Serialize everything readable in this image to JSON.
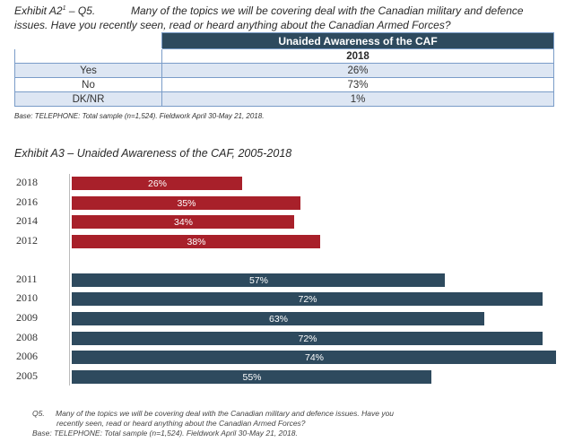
{
  "exhibit_a2": {
    "id": "Exhibit A2",
    "sup": "1",
    "question_id": "– Q5.",
    "question_line1": "Many of the topics we will be covering deal with the Canadian military and defence",
    "question_line2": "issues. Have you recently seen, read or heard anything about the Canadian Armed Forces?"
  },
  "table": {
    "title": "Unaided Awareness of the CAF",
    "year_header": "2018",
    "rows": [
      {
        "label": "Yes",
        "value": "26%"
      },
      {
        "label": "No",
        "value": "73%"
      },
      {
        "label": "DK/NR",
        "value": "1%"
      }
    ],
    "base": "Base: TELEPHONE: Total sample (n=1,524). Fieldwork April 30-May 21, 2018."
  },
  "exhibit_a3_title": "Exhibit A3 – Unaided Awareness of the CAF, 2005-2018",
  "colors": {
    "red": "#a8202a",
    "slate": "#2e4a5e"
  },
  "chart_data": {
    "type": "bar",
    "orientation": "horizontal",
    "categories": [
      "2018",
      "2016",
      "2014",
      "2012",
      "2011",
      "2010",
      "2009",
      "2008",
      "2006",
      "2005"
    ],
    "values": [
      26,
      35,
      34,
      38,
      57,
      72,
      63,
      72,
      74,
      55
    ],
    "labels": [
      "26%",
      "35%",
      "34%",
      "38%",
      "57%",
      "72%",
      "63%",
      "72%",
      "74%",
      "55%"
    ],
    "bar_colors": [
      "#a8202a",
      "#a8202a",
      "#a8202a",
      "#a8202a",
      "#2e4a5e",
      "#2e4a5e",
      "#2e4a5e",
      "#2e4a5e",
      "#2e4a5e",
      "#2e4a5e"
    ],
    "title": "",
    "xlabel": "",
    "ylabel": "",
    "xlim": [
      0,
      74
    ]
  },
  "footnote": {
    "q": "Q5.",
    "line1": "Many of the topics we will be covering deal with the Canadian military and defence issues. Have you",
    "line2": "recently seen, read or heard anything about the Canadian Armed Forces?",
    "base": "Base: TELEPHONE: Total sample (n=1,524). Fieldwork April 30-May 21, 2018."
  }
}
